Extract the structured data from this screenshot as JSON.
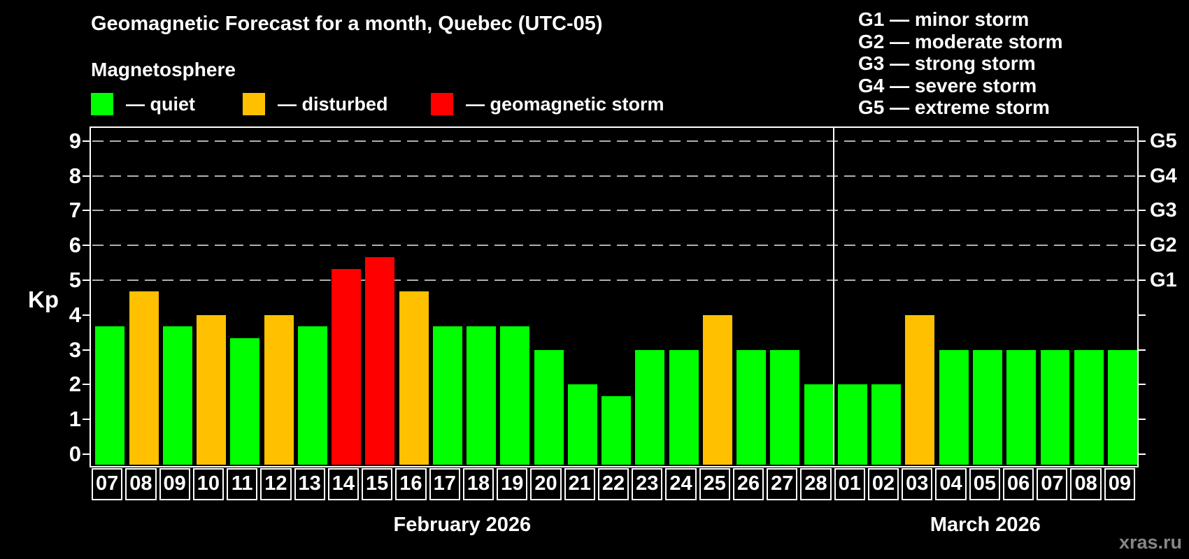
{
  "header": {
    "title": "Geomagnetic Forecast for a month, Quebec (UTC-05)",
    "legend_title": "Magnetosphere",
    "legend": [
      {
        "status": "quiet",
        "label": "— quiet"
      },
      {
        "status": "disturbed",
        "label": "— disturbed"
      },
      {
        "status": "storm",
        "label": "— geomagnetic storm"
      }
    ],
    "g_scale_legend": [
      {
        "text": "G1 — minor storm"
      },
      {
        "text": "G2 — moderate storm"
      },
      {
        "text": "G3 — strong storm"
      },
      {
        "text": "G4 — severe storm"
      },
      {
        "text": "G5 — extreme storm"
      }
    ]
  },
  "watermark": "xras.ru",
  "chart_data": {
    "type": "bar",
    "title": "Geomagnetic Forecast for a month, Quebec (UTC-05)",
    "ylabel": "Kp",
    "y_ticks": [
      0,
      1,
      2,
      3,
      4,
      5,
      6,
      7,
      8,
      9
    ],
    "ylim": [
      0,
      9.4
    ],
    "grid": "dashed horizontal lines at Kp 5-9 only",
    "grid_dashed_at": [
      5,
      6,
      7,
      8,
      9
    ],
    "right_axis_labels": [
      {
        "kp": 5,
        "label": "G1"
      },
      {
        "kp": 6,
        "label": "G2"
      },
      {
        "kp": 7,
        "label": "G3"
      },
      {
        "kp": 8,
        "label": "G4"
      },
      {
        "kp": 9,
        "label": "G5"
      }
    ],
    "legend_position": "top-left",
    "months": [
      {
        "label": "February 2026",
        "days": 22
      },
      {
        "label": "March 2026",
        "days": 9
      }
    ],
    "colors": {
      "quiet": "#00ff00",
      "disturbed": "#ffc000",
      "storm": "#ff0000",
      "grid": "#b0b0b0",
      "axis": "#ffffff",
      "watermark": "#868686"
    },
    "bars": [
      {
        "date": "07",
        "month": "February 2026",
        "kp": 3.67,
        "status": "quiet"
      },
      {
        "date": "08",
        "month": "February 2026",
        "kp": 4.67,
        "status": "disturbed"
      },
      {
        "date": "09",
        "month": "February 2026",
        "kp": 3.67,
        "status": "quiet"
      },
      {
        "date": "10",
        "month": "February 2026",
        "kp": 4.0,
        "status": "disturbed"
      },
      {
        "date": "11",
        "month": "February 2026",
        "kp": 3.33,
        "status": "quiet"
      },
      {
        "date": "12",
        "month": "February 2026",
        "kp": 4.0,
        "status": "disturbed"
      },
      {
        "date": "13",
        "month": "February 2026",
        "kp": 3.67,
        "status": "quiet"
      },
      {
        "date": "14",
        "month": "February 2026",
        "kp": 5.33,
        "status": "storm"
      },
      {
        "date": "15",
        "month": "February 2026",
        "kp": 5.67,
        "status": "storm"
      },
      {
        "date": "16",
        "month": "February 2026",
        "kp": 4.67,
        "status": "disturbed"
      },
      {
        "date": "17",
        "month": "February 2026",
        "kp": 3.67,
        "status": "quiet"
      },
      {
        "date": "18",
        "month": "February 2026",
        "kp": 3.67,
        "status": "quiet"
      },
      {
        "date": "19",
        "month": "February 2026",
        "kp": 3.67,
        "status": "quiet"
      },
      {
        "date": "20",
        "month": "February 2026",
        "kp": 3.0,
        "status": "quiet"
      },
      {
        "date": "21",
        "month": "February 2026",
        "kp": 2.0,
        "status": "quiet"
      },
      {
        "date": "22",
        "month": "February 2026",
        "kp": 1.67,
        "status": "quiet"
      },
      {
        "date": "23",
        "month": "February 2026",
        "kp": 3.0,
        "status": "quiet"
      },
      {
        "date": "24",
        "month": "February 2026",
        "kp": 3.0,
        "status": "quiet"
      },
      {
        "date": "25",
        "month": "February 2026",
        "kp": 4.0,
        "status": "disturbed"
      },
      {
        "date": "26",
        "month": "February 2026",
        "kp": 3.0,
        "status": "quiet"
      },
      {
        "date": "27",
        "month": "February 2026",
        "kp": 3.0,
        "status": "quiet"
      },
      {
        "date": "28",
        "month": "February 2026",
        "kp": 2.0,
        "status": "quiet"
      },
      {
        "date": "01",
        "month": "March 2026",
        "kp": 2.0,
        "status": "quiet"
      },
      {
        "date": "02",
        "month": "March 2026",
        "kp": 2.0,
        "status": "quiet"
      },
      {
        "date": "03",
        "month": "March 2026",
        "kp": 4.0,
        "status": "disturbed"
      },
      {
        "date": "04",
        "month": "March 2026",
        "kp": 3.0,
        "status": "quiet"
      },
      {
        "date": "05",
        "month": "March 2026",
        "kp": 3.0,
        "status": "quiet"
      },
      {
        "date": "06",
        "month": "March 2026",
        "kp": 3.0,
        "status": "quiet"
      },
      {
        "date": "07",
        "month": "March 2026",
        "kp": 3.0,
        "status": "quiet"
      },
      {
        "date": "08",
        "month": "March 2026",
        "kp": 3.0,
        "status": "quiet"
      },
      {
        "date": "09",
        "month": "March 2026",
        "kp": 3.0,
        "status": "quiet"
      }
    ]
  }
}
